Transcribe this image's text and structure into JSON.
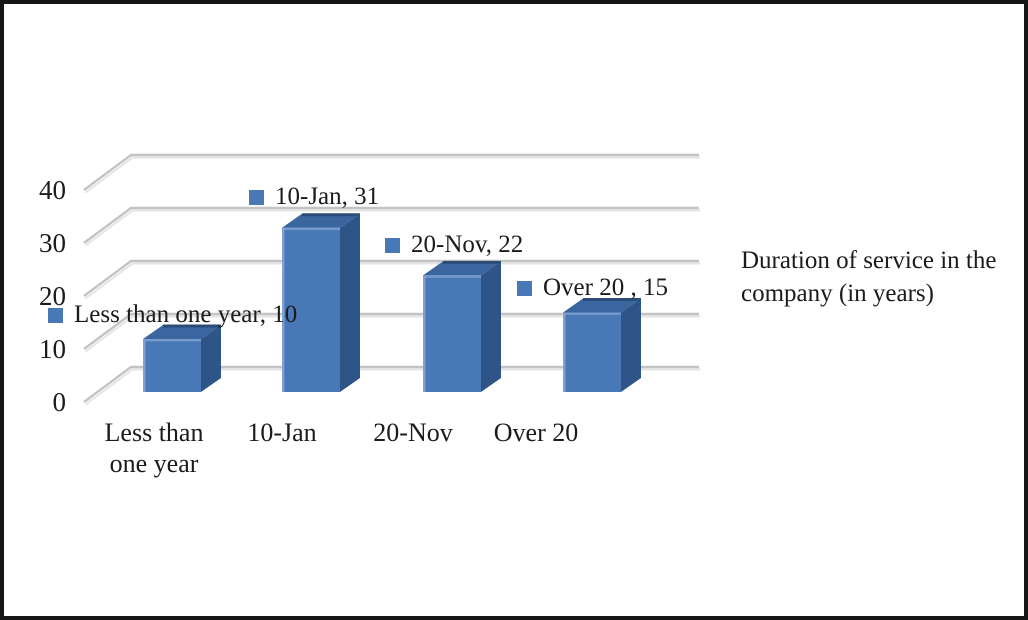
{
  "chart_data": {
    "type": "bar",
    "projection": "3d",
    "title": "",
    "xlabel": "",
    "ylabel": "",
    "categories": [
      "Less than\none year",
      "10-Jan",
      "20-Nov",
      "Over 20"
    ],
    "values": [
      10,
      31,
      22,
      15
    ],
    "data_labels": [
      "Less than one year, 10",
      "10-Jan, 31",
      "20-Nov, 22",
      "Over 20 , 15"
    ],
    "y_ticks": [
      0,
      10,
      20,
      30,
      40
    ],
    "ylim": [
      0,
      40
    ],
    "grid": true,
    "legend_position": "right",
    "series_label": "Duration of service in the\ncompany (in years)"
  },
  "colors": {
    "bar_front": "#4878b6",
    "bar_top": "#3b659e",
    "bar_side": "#2f5487",
    "bar_highlight": "#86a7d6",
    "bar_top_back_edge": "#2c4c78",
    "marker": "#4878b6",
    "gridline": "#c3c3c3",
    "gridline_shadow": "#e4e4e4",
    "text": "#1b1b1b",
    "background": "#ffffff",
    "frame_border": "#161616"
  }
}
